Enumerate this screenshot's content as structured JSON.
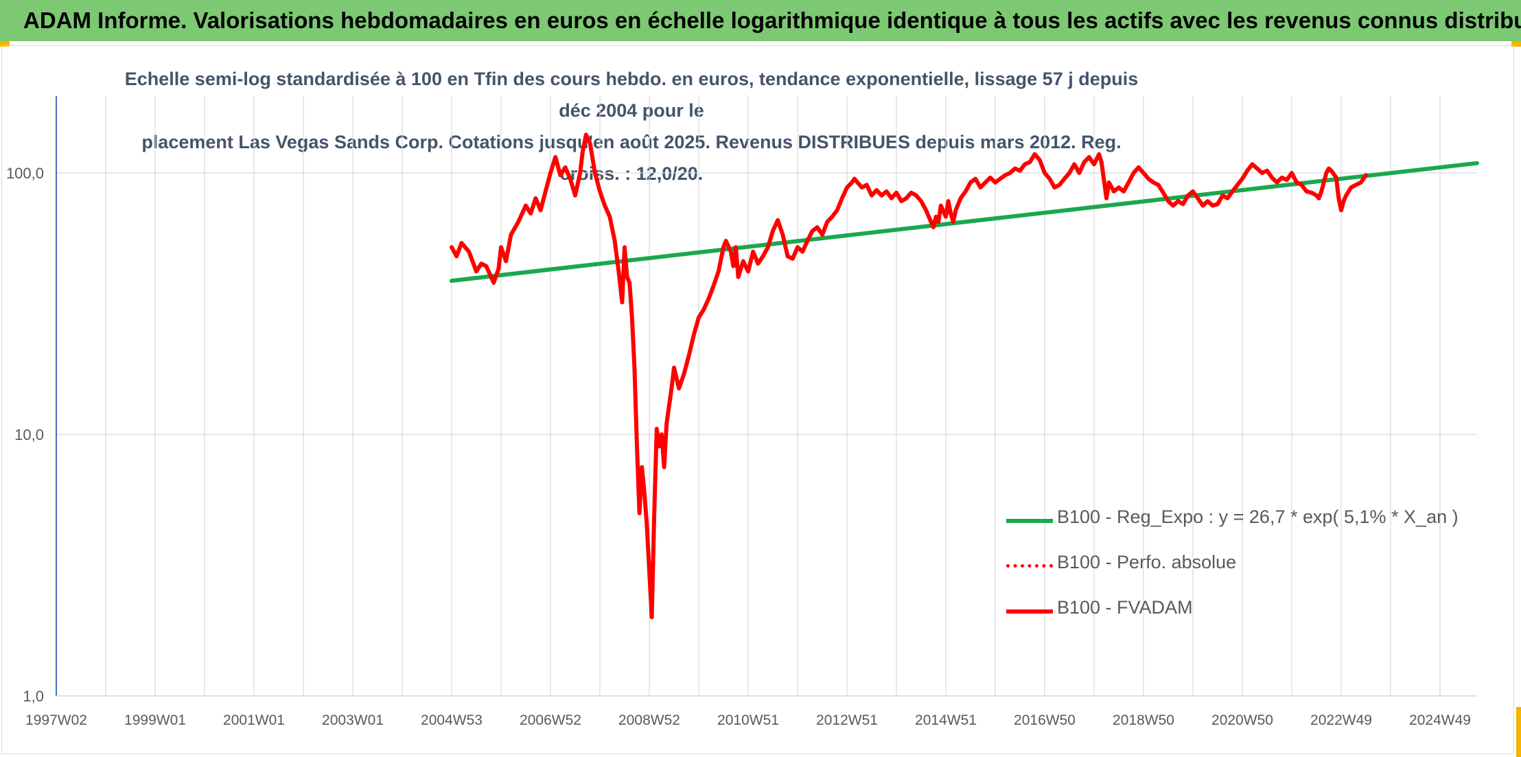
{
  "header": {
    "title": "ADAM Informe. Valorisations hebdomadaires en euros en échelle logarithmique identique à tous les actifs avec les revenus connus distribués"
  },
  "colors": {
    "banner": "#7dc873",
    "corner_accent": "#f4b400",
    "regression": "#1aa84c",
    "fvadam": "#ff0000",
    "perfo": "#ff0000",
    "axis": "#4472c4",
    "grid": "#d9d9d9"
  },
  "chart_data": {
    "type": "line",
    "title_lines": [
      "Echelle semi-log standardisée à 100 en Tfin des cours hebdo. en euros, tendance exponentielle, lissage 57 j depuis déc 2004 pour le",
      "placement Las Vegas Sands Corp. Cotations jusqu'en août 2025. Revenus DISTRIBUES depuis mars 2012. Reg. croiss. : 12,0/20."
    ],
    "y_scale": "log",
    "ylim": [
      1,
      180
    ],
    "y_ticks": [
      {
        "value": 1,
        "label": "1,0"
      },
      {
        "value": 10,
        "label": "10,0"
      },
      {
        "value": 100,
        "label": "100,0"
      }
    ],
    "x_range": [
      1997.0,
      2025.75
    ],
    "x_ticks": [
      {
        "label": "1997W02",
        "t": 1997.0
      },
      {
        "label": "1999W01",
        "t": 1999.0
      },
      {
        "label": "2001W01",
        "t": 2001.0
      },
      {
        "label": "2003W01",
        "t": 2003.0
      },
      {
        "label": "2004W53",
        "t": 2005.0
      },
      {
        "label": "2006W52",
        "t": 2007.0
      },
      {
        "label": "2008W52",
        "t": 2009.0
      },
      {
        "label": "2010W51",
        "t": 2011.0
      },
      {
        "label": "2012W51",
        "t": 2013.0
      },
      {
        "label": "2014W51",
        "t": 2015.0
      },
      {
        "label": "2016W50",
        "t": 2017.0
      },
      {
        "label": "2018W50",
        "t": 2019.0
      },
      {
        "label": "2020W50",
        "t": 2021.0
      },
      {
        "label": "2022W49",
        "t": 2023.0
      },
      {
        "label": "2024W49",
        "t": 2025.0
      }
    ],
    "grid": true,
    "legend_position": "bottom-right",
    "series": [
      {
        "name": "B100 - Reg_Expo : y = 26,7 * exp( 5,1% *  X_an )",
        "color": "#1aa84c",
        "style": "solid",
        "points": [
          [
            2005.0,
            38.7
          ],
          [
            2025.75,
            109.0
          ]
        ]
      },
      {
        "name": "B100 - Perfo. absolue",
        "color": "#ff0000",
        "style": "dotted",
        "points": []
      },
      {
        "name": "B100 - FVADAM",
        "color": "#ff0000",
        "style": "solid",
        "points": [
          [
            2005.0,
            52
          ],
          [
            2005.1,
            48
          ],
          [
            2005.2,
            54
          ],
          [
            2005.35,
            50
          ],
          [
            2005.5,
            42
          ],
          [
            2005.6,
            45
          ],
          [
            2005.7,
            44
          ],
          [
            2005.8,
            40
          ],
          [
            2005.85,
            38
          ],
          [
            2005.95,
            43
          ],
          [
            2006.0,
            52
          ],
          [
            2006.1,
            46
          ],
          [
            2006.2,
            58
          ],
          [
            2006.35,
            65
          ],
          [
            2006.5,
            75
          ],
          [
            2006.6,
            70
          ],
          [
            2006.7,
            80
          ],
          [
            2006.8,
            72
          ],
          [
            2006.9,
            85
          ],
          [
            2007.0,
            100
          ],
          [
            2007.1,
            115
          ],
          [
            2007.2,
            98
          ],
          [
            2007.3,
            105
          ],
          [
            2007.4,
            95
          ],
          [
            2007.5,
            82
          ],
          [
            2007.6,
            100
          ],
          [
            2007.65,
            120
          ],
          [
            2007.72,
            140
          ],
          [
            2007.8,
            130
          ],
          [
            2007.9,
            100
          ],
          [
            2008.0,
            85
          ],
          [
            2008.1,
            75
          ],
          [
            2008.2,
            68
          ],
          [
            2008.3,
            55
          ],
          [
            2008.38,
            42
          ],
          [
            2008.45,
            32
          ],
          [
            2008.5,
            52
          ],
          [
            2008.55,
            40
          ],
          [
            2008.6,
            38
          ],
          [
            2008.65,
            28
          ],
          [
            2008.7,
            18
          ],
          [
            2008.75,
            9
          ],
          [
            2008.8,
            5
          ],
          [
            2008.85,
            7.5
          ],
          [
            2008.9,
            6
          ],
          [
            2008.95,
            4.5
          ],
          [
            2009.0,
            3
          ],
          [
            2009.05,
            2
          ],
          [
            2009.1,
            5
          ],
          [
            2009.15,
            10.5
          ],
          [
            2009.2,
            9
          ],
          [
            2009.25,
            10
          ],
          [
            2009.3,
            7.5
          ],
          [
            2009.35,
            11
          ],
          [
            2009.45,
            15
          ],
          [
            2009.5,
            18
          ],
          [
            2009.6,
            15
          ],
          [
            2009.7,
            17
          ],
          [
            2009.8,
            20
          ],
          [
            2009.9,
            24
          ],
          [
            2010.0,
            28
          ],
          [
            2010.1,
            30
          ],
          [
            2010.2,
            33
          ],
          [
            2010.3,
            37
          ],
          [
            2010.4,
            42
          ],
          [
            2010.5,
            52
          ],
          [
            2010.55,
            55
          ],
          [
            2010.65,
            50
          ],
          [
            2010.7,
            44
          ],
          [
            2010.75,
            52
          ],
          [
            2010.8,
            40
          ],
          [
            2010.9,
            46
          ],
          [
            2011.0,
            42
          ],
          [
            2011.1,
            50
          ],
          [
            2011.2,
            45
          ],
          [
            2011.3,
            48
          ],
          [
            2011.4,
            52
          ],
          [
            2011.5,
            60
          ],
          [
            2011.6,
            66
          ],
          [
            2011.7,
            58
          ],
          [
            2011.8,
            48
          ],
          [
            2011.9,
            47
          ],
          [
            2012.0,
            52
          ],
          [
            2012.1,
            50
          ],
          [
            2012.2,
            55
          ],
          [
            2012.3,
            60
          ],
          [
            2012.4,
            62
          ],
          [
            2012.5,
            58
          ],
          [
            2012.6,
            65
          ],
          [
            2012.7,
            68
          ],
          [
            2012.8,
            72
          ],
          [
            2012.9,
            80
          ],
          [
            2013.0,
            88
          ],
          [
            2013.1,
            92
          ],
          [
            2013.15,
            95
          ],
          [
            2013.3,
            88
          ],
          [
            2013.4,
            90
          ],
          [
            2013.5,
            82
          ],
          [
            2013.6,
            86
          ],
          [
            2013.7,
            82
          ],
          [
            2013.8,
            85
          ],
          [
            2013.9,
            80
          ],
          [
            2014.0,
            84
          ],
          [
            2014.1,
            78
          ],
          [
            2014.2,
            80
          ],
          [
            2014.3,
            84
          ],
          [
            2014.4,
            82
          ],
          [
            2014.5,
            78
          ],
          [
            2014.6,
            72
          ],
          [
            2014.7,
            65
          ],
          [
            2014.75,
            62
          ],
          [
            2014.8,
            68
          ],
          [
            2014.85,
            65
          ],
          [
            2014.9,
            75
          ],
          [
            2015.0,
            68
          ],
          [
            2015.05,
            78
          ],
          [
            2015.1,
            70
          ],
          [
            2015.15,
            65
          ],
          [
            2015.2,
            72
          ],
          [
            2015.3,
            80
          ],
          [
            2015.4,
            85
          ],
          [
            2015.5,
            92
          ],
          [
            2015.6,
            95
          ],
          [
            2015.7,
            88
          ],
          [
            2015.8,
            92
          ],
          [
            2015.9,
            96
          ],
          [
            2016.0,
            92
          ],
          [
            2016.1,
            95
          ],
          [
            2016.2,
            98
          ],
          [
            2016.3,
            100
          ],
          [
            2016.4,
            104
          ],
          [
            2016.5,
            102
          ],
          [
            2016.6,
            108
          ],
          [
            2016.7,
            110
          ],
          [
            2016.8,
            118
          ],
          [
            2016.9,
            112
          ],
          [
            2017.0,
            100
          ],
          [
            2017.1,
            95
          ],
          [
            2017.2,
            88
          ],
          [
            2017.3,
            90
          ],
          [
            2017.4,
            95
          ],
          [
            2017.5,
            100
          ],
          [
            2017.6,
            108
          ],
          [
            2017.7,
            100
          ],
          [
            2017.8,
            110
          ],
          [
            2017.9,
            115
          ],
          [
            2018.0,
            108
          ],
          [
            2018.1,
            118
          ],
          [
            2018.15,
            110
          ],
          [
            2018.25,
            80
          ],
          [
            2018.3,
            92
          ],
          [
            2018.4,
            85
          ],
          [
            2018.5,
            88
          ],
          [
            2018.6,
            85
          ],
          [
            2018.7,
            92
          ],
          [
            2018.8,
            100
          ],
          [
            2018.9,
            105
          ],
          [
            2019.0,
            100
          ],
          [
            2019.1,
            95
          ],
          [
            2019.2,
            92
          ],
          [
            2019.3,
            90
          ],
          [
            2019.4,
            84
          ],
          [
            2019.5,
            78
          ],
          [
            2019.6,
            75
          ],
          [
            2019.7,
            78
          ],
          [
            2019.8,
            76
          ],
          [
            2019.9,
            82
          ],
          [
            2020.0,
            85
          ],
          [
            2020.1,
            80
          ],
          [
            2020.2,
            75
          ],
          [
            2020.3,
            78
          ],
          [
            2020.4,
            75
          ],
          [
            2020.5,
            76
          ],
          [
            2020.6,
            82
          ],
          [
            2020.7,
            80
          ],
          [
            2020.8,
            85
          ],
          [
            2020.9,
            90
          ],
          [
            2021.0,
            95
          ],
          [
            2021.1,
            102
          ],
          [
            2021.2,
            108
          ],
          [
            2021.3,
            104
          ],
          [
            2021.4,
            100
          ],
          [
            2021.5,
            102
          ],
          [
            2021.6,
            96
          ],
          [
            2021.7,
            92
          ],
          [
            2021.8,
            96
          ],
          [
            2021.9,
            94
          ],
          [
            2022.0,
            100
          ],
          [
            2022.1,
            92
          ],
          [
            2022.2,
            90
          ],
          [
            2022.3,
            85
          ],
          [
            2022.4,
            84
          ],
          [
            2022.5,
            82
          ],
          [
            2022.55,
            80
          ],
          [
            2022.6,
            85
          ],
          [
            2022.7,
            100
          ],
          [
            2022.75,
            104
          ],
          [
            2022.8,
            102
          ],
          [
            2022.9,
            96
          ],
          [
            2022.95,
            80
          ],
          [
            2023.0,
            72
          ],
          [
            2023.05,
            78
          ],
          [
            2023.1,
            82
          ],
          [
            2023.2,
            88
          ],
          [
            2023.3,
            90
          ],
          [
            2023.4,
            92
          ],
          [
            2023.5,
            98
          ]
        ]
      }
    ]
  }
}
